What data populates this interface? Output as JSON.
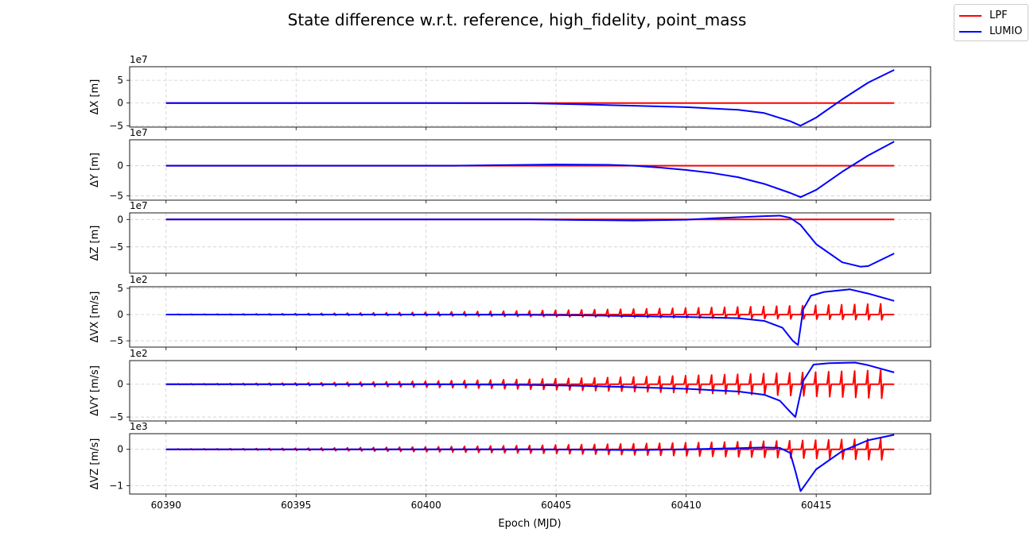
{
  "figure": {
    "title": "State difference w.r.t. reference, high_fidelity, point_mass",
    "xlabel": "Epoch (MJD)"
  },
  "legend": {
    "placement": "top-right",
    "entries": [
      {
        "name": "LPF",
        "color": "#ff0000"
      },
      {
        "name": "LUMIO",
        "color": "#0000ff"
      }
    ]
  },
  "chart_data": [
    {
      "type": "line",
      "ylabel": "ΔX [m]",
      "exponent": "1e7",
      "xlim": [
        60388.6,
        60419.4
      ],
      "ylim": [
        -5.3,
        8.0
      ],
      "yticks": [
        -5,
        0,
        5
      ],
      "ytick_labels": [
        "−5",
        "0",
        "5"
      ],
      "xticks": [
        60390,
        60395,
        60400,
        60405,
        60410,
        60415
      ],
      "grid": true,
      "series": [
        {
          "name": "LPF",
          "color": "#ff0000",
          "x": [
            60390,
            60418
          ],
          "y": [
            0,
            0
          ]
        },
        {
          "name": "LUMIO",
          "color": "#0000ff",
          "x": [
            60390,
            60400,
            60404,
            60406,
            60408,
            60410,
            60412,
            60413,
            60414,
            60414.4,
            60415,
            60416,
            60417,
            60418
          ],
          "y": [
            0,
            0,
            -0.05,
            -0.3,
            -0.6,
            -0.9,
            -1.5,
            -2.2,
            -4.0,
            -5.0,
            -3.2,
            0.8,
            4.5,
            7.3
          ]
        }
      ]
    },
    {
      "type": "line",
      "ylabel": "ΔY [m]",
      "exponent": "1e7",
      "xlim": [
        60388.6,
        60419.4
      ],
      "ylim": [
        -5.7,
        4.3
      ],
      "yticks": [
        -5,
        0
      ],
      "ytick_labels": [
        "−5",
        "0"
      ],
      "xticks": [
        60390,
        60395,
        60400,
        60405,
        60410,
        60415
      ],
      "grid": true,
      "series": [
        {
          "name": "LPF",
          "color": "#ff0000",
          "x": [
            60390,
            60418
          ],
          "y": [
            0,
            0
          ]
        },
        {
          "name": "LUMIO",
          "color": "#0000ff",
          "x": [
            60390,
            60401,
            60403,
            60405,
            60407,
            60408,
            60409,
            60410,
            60411,
            60412,
            60413,
            60414,
            60414.4,
            60415,
            60416,
            60417,
            60418
          ],
          "y": [
            0,
            0,
            0.1,
            0.2,
            0.15,
            0,
            -0.3,
            -0.7,
            -1.2,
            -1.9,
            -3.0,
            -4.5,
            -5.2,
            -4.0,
            -1.0,
            1.7,
            4.0
          ]
        }
      ]
    },
    {
      "type": "line",
      "ylabel": "ΔZ [m]",
      "exponent": "1e7",
      "xlim": [
        60388.6,
        60419.4
      ],
      "ylim": [
        -9.8,
        1.2
      ],
      "yticks": [
        -5,
        0
      ],
      "ytick_labels": [
        "−5",
        "0"
      ],
      "xticks": [
        60390,
        60395,
        60400,
        60405,
        60410,
        60415
      ],
      "grid": true,
      "series": [
        {
          "name": "LPF",
          "color": "#ff0000",
          "x": [
            60390,
            60418
          ],
          "y": [
            0,
            0
          ]
        },
        {
          "name": "LUMIO",
          "color": "#0000ff",
          "x": [
            60390,
            60404,
            60406,
            60408,
            60410,
            60411,
            60412,
            60413,
            60413.6,
            60414,
            60414.4,
            60415,
            60416,
            60416.7,
            60417,
            60418
          ],
          "y": [
            0,
            0,
            -0.1,
            -0.2,
            -0.05,
            0.2,
            0.4,
            0.6,
            0.7,
            0.3,
            -1.0,
            -4.5,
            -7.8,
            -8.6,
            -8.5,
            -6.2
          ]
        }
      ]
    },
    {
      "type": "line",
      "ylabel": "ΔVX [m/s]",
      "exponent": "1e2",
      "xlim": [
        60388.6,
        60419.4
      ],
      "ylim": [
        -6.2,
        5.3
      ],
      "yticks": [
        -5,
        0,
        5
      ],
      "ytick_labels": [
        "−5",
        "0",
        "5"
      ],
      "xticks": [
        60390,
        60395,
        60400,
        60405,
        60410,
        60415
      ],
      "grid": true,
      "series": [
        {
          "name": "LPF",
          "color": "#ff0000",
          "style": "spikes",
          "spike_start": 60390.5,
          "spike_period": 0.5,
          "spike_end": 60418,
          "spike_amp_start": 0.05,
          "spike_amp_end": 2.1,
          "spike_neg_ratio": 0.5,
          "x": [
            60390,
            60418
          ],
          "y": [
            0,
            0
          ]
        },
        {
          "name": "LUMIO",
          "color": "#0000ff",
          "x": [
            60390,
            60400,
            60404,
            60406,
            60408,
            60410,
            60412,
            60413,
            60413.7,
            60414.1,
            60414.3,
            60414.5,
            60414.8,
            60415.3,
            60416.3,
            60417,
            60418
          ],
          "y": [
            0,
            0,
            -0.05,
            -0.15,
            -0.3,
            -0.45,
            -0.7,
            -1.2,
            -2.5,
            -5.0,
            -5.8,
            1.0,
            3.6,
            4.3,
            4.8,
            4.0,
            2.6
          ]
        }
      ]
    },
    {
      "type": "line",
      "ylabel": "ΔVY [m/s]",
      "exponent": "1e2",
      "xlim": [
        60388.6,
        60419.4
      ],
      "ylim": [
        -5.6,
        3.6
      ],
      "yticks": [
        -5,
        0
      ],
      "ytick_labels": [
        "−5",
        "0"
      ],
      "xticks": [
        60390,
        60395,
        60400,
        60405,
        60410,
        60415
      ],
      "grid": true,
      "series": [
        {
          "name": "LPF",
          "color": "#ff0000",
          "style": "spikes",
          "spike_start": 60390.5,
          "spike_period": 0.5,
          "spike_end": 60418,
          "spike_amp_start": 0.05,
          "spike_amp_end": 2.2,
          "spike_neg_ratio": 1.0,
          "x": [
            60390,
            60418
          ],
          "y": [
            0,
            0
          ]
        },
        {
          "name": "LUMIO",
          "color": "#0000ff",
          "x": [
            60390,
            60400,
            60404,
            60406,
            60408,
            60410,
            60412,
            60413,
            60413.6,
            60414,
            60414.2,
            60414.5,
            60414.9,
            60415.5,
            60416.5,
            60417,
            60418
          ],
          "y": [
            0,
            0,
            -0.1,
            -0.25,
            -0.45,
            -0.7,
            -1.1,
            -1.6,
            -2.5,
            -4.2,
            -5.0,
            0.5,
            3.0,
            3.2,
            3.3,
            2.9,
            1.8
          ]
        }
      ]
    },
    {
      "type": "line",
      "ylabel": "ΔVZ [m/s]",
      "exponent": "1e3",
      "xlim": [
        60388.6,
        60419.4
      ],
      "ylim": [
        -1.23,
        0.43
      ],
      "yticks": [
        -1,
        0
      ],
      "ytick_labels": [
        "−1",
        "0"
      ],
      "xticks": [
        60390,
        60395,
        60400,
        60405,
        60410,
        60415
      ],
      "xtick_labels": [
        "60390",
        "60395",
        "60400",
        "60405",
        "60410",
        "60415"
      ],
      "grid": true,
      "series": [
        {
          "name": "LPF",
          "color": "#ff0000",
          "style": "spikes",
          "spike_start": 60390.5,
          "spike_period": 0.5,
          "spike_end": 60418,
          "spike_amp_start": 0.01,
          "spike_amp_end": 0.3,
          "spike_neg_ratio": 1.0,
          "x": [
            60390,
            60418
          ],
          "y": [
            0,
            0
          ]
        },
        {
          "name": "LUMIO",
          "color": "#0000ff",
          "x": [
            60390,
            60404,
            60406,
            60408,
            60410,
            60412,
            60413,
            60413.6,
            60414,
            60414.2,
            60414.4,
            60414.6,
            60415,
            60416,
            60417,
            60418
          ],
          "y": [
            0,
            0,
            -0.01,
            -0.02,
            0,
            0.03,
            0.05,
            0.04,
            -0.1,
            -0.6,
            -1.15,
            -0.95,
            -0.55,
            -0.05,
            0.25,
            0.4
          ]
        }
      ]
    }
  ]
}
